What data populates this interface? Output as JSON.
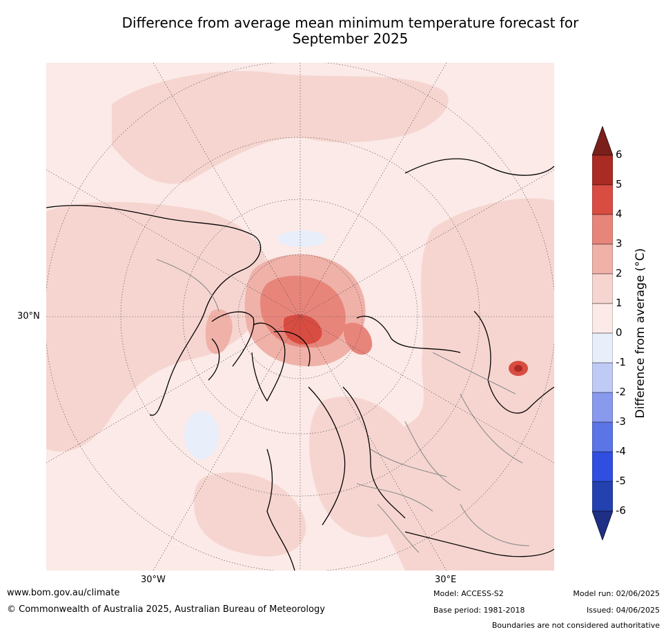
{
  "title_line1": "Difference from average mean minimum temperature forecast for",
  "title_line2": "September 2025",
  "map": {
    "lat_label": "30°N",
    "lon_label_west": "30°W",
    "lon_label_east": "30°E",
    "projection": "north polar stereographic"
  },
  "colorbar": {
    "label": "Difference from average (°C)",
    "ticks": [
      "6",
      "5",
      "4",
      "3",
      "2",
      "1",
      "0",
      "-1",
      "-2",
      "-3",
      "-4",
      "-5",
      "-6"
    ],
    "colors": [
      "#aa2a24",
      "#d94c41",
      "#e8857b",
      "#efb1a8",
      "#f6d5d0",
      "#fbeae7",
      "#e9eefb",
      "#c0cbf5",
      "#8899ee",
      "#5b74e6",
      "#304fe0",
      "#2441b0"
    ],
    "over_color": "#7a1f1a",
    "under_color": "#1f2f85"
  },
  "footer": {
    "website": "www.bom.gov.au/climate",
    "copyright": "© Commonwealth of Australia 2025, Australian Bureau of Meteorology",
    "model": "Model: ACCESS-S2",
    "base_period": "Base period: 1981-2018",
    "model_run": "Model run: 02/06/2025",
    "issued": "Issued: 04/06/2025",
    "disclaimer": "Boundaries are not considered authoritative"
  }
}
